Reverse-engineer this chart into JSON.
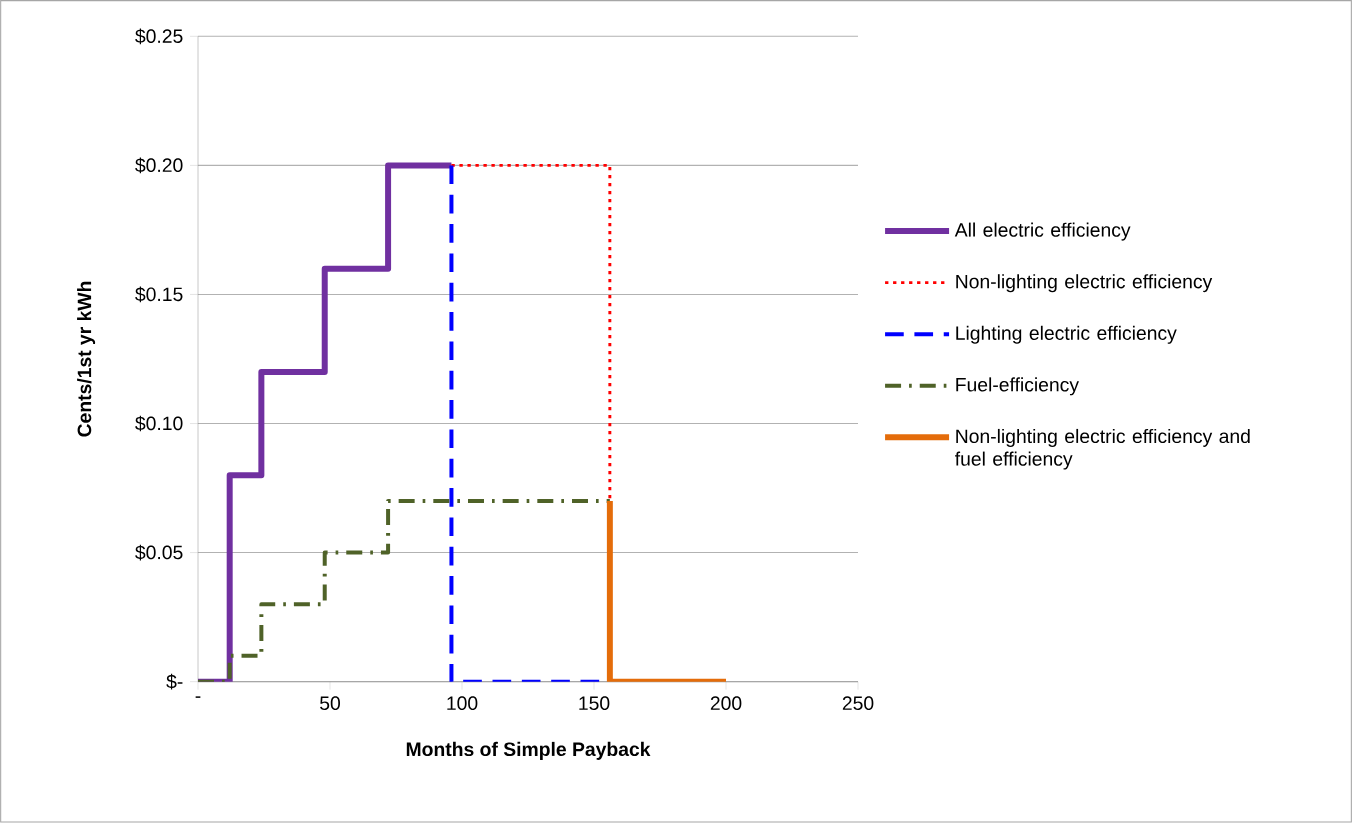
{
  "chart_data": {
    "type": "step",
    "xlabel": "Months of Simple Payback",
    "ylabel": "Cents/1st yr kWh",
    "xlim": [
      0,
      250
    ],
    "ylim": [
      0,
      0.25
    ],
    "xticks": [
      {
        "value": 0,
        "label": "-"
      },
      50,
      100,
      150,
      200,
      250
    ],
    "yticks": [
      {
        "value": 0,
        "label": "$-"
      },
      {
        "value": 0.05,
        "label": "$0.05"
      },
      {
        "value": 0.1,
        "label": "$0.10"
      },
      {
        "value": 0.15,
        "label": "$0.15"
      },
      {
        "value": 0.2,
        "label": "$0.20"
      },
      {
        "value": 0.25,
        "label": "$0.25"
      }
    ],
    "grid": "y",
    "legend": "right",
    "marker": "none",
    "series": [
      {
        "name": "All electric efficiency",
        "color": "#7030a0",
        "line_style": "solid",
        "x": [
          0,
          12,
          24,
          48,
          72,
          96
        ],
        "values": [
          0,
          0.08,
          0.12,
          0.16,
          0.2,
          0.2
        ]
      },
      {
        "name": "Non-lighting electric efficiency",
        "color": "#ff0000",
        "line_style": "dotted",
        "x": [
          96,
          156,
          156
        ],
        "values": [
          0.2,
          0.2,
          0.07
        ]
      },
      {
        "name": "Lighting electric efficiency",
        "color": "#0000ff",
        "line_style": "dashed",
        "x": [
          96,
          96,
          152
        ],
        "values": [
          0.2,
          0,
          0
        ]
      },
      {
        "name": "Fuel-efficiency",
        "color": "#4f6228",
        "line_style": "dashdot",
        "x": [
          0,
          12,
          24,
          48,
          72,
          156
        ],
        "values": [
          0,
          0.01,
          0.03,
          0.05,
          0.07,
          0.07
        ]
      },
      {
        "name": "Non-lighting electric efficiency and fuel efficiency",
        "color": "#e46c0a",
        "line_style": "solid",
        "x": [
          156,
          156,
          200
        ],
        "values": [
          0.07,
          0,
          0
        ]
      }
    ]
  }
}
